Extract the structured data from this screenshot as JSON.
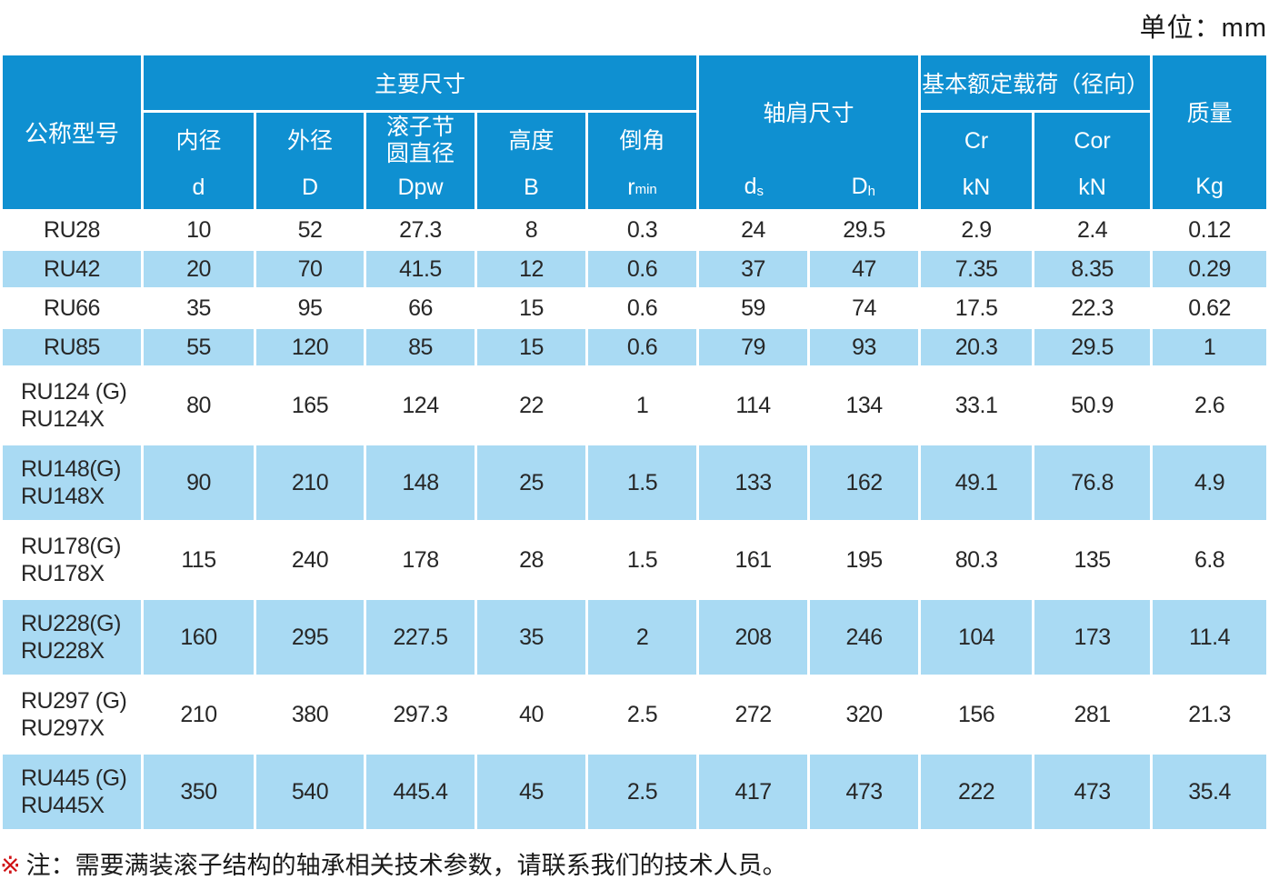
{
  "unit_label": "单位：mm",
  "colors": {
    "header_blue": "#0f90d1",
    "row_stripe_blue": "#a9daf3",
    "note_marker_red": "#d01215"
  },
  "table": {
    "header": {
      "model": "公称型号",
      "main_dims": "主要尺寸",
      "inner": {
        "name": "内径",
        "symbol": "d"
      },
      "outer": {
        "name": "外径",
        "symbol": "D"
      },
      "pitch": {
        "name": "滚子节\n圆直径",
        "symbol": "Dpw"
      },
      "height": {
        "name": "高度",
        "symbol": "B"
      },
      "chamfer": {
        "name": "倒角",
        "symbol_base": "r",
        "symbol_sub": "min"
      },
      "shoulder": {
        "name": "轴肩尺寸",
        "ds_base": "d",
        "ds_sub": "s",
        "dh_base": "D",
        "dh_sub": "h"
      },
      "load": {
        "name": "基本额定载荷（径向）",
        "cr": "Cr",
        "cor": "Cor",
        "cr_unit": "kN",
        "cor_unit": "kN"
      },
      "mass": {
        "name": "质量",
        "unit": "Kg"
      }
    },
    "rows": [
      {
        "model": [
          "RU28"
        ],
        "values": [
          "10",
          "52",
          "27.3",
          "8",
          "0.3",
          "24",
          "29.5",
          "2.9",
          "2.4",
          "0.12"
        ]
      },
      {
        "model": [
          "RU42"
        ],
        "values": [
          "20",
          "70",
          "41.5",
          "12",
          "0.6",
          "37",
          "47",
          "7.35",
          "8.35",
          "0.29"
        ]
      },
      {
        "model": [
          "RU66"
        ],
        "values": [
          "35",
          "95",
          "66",
          "15",
          "0.6",
          "59",
          "74",
          "17.5",
          "22.3",
          "0.62"
        ]
      },
      {
        "model": [
          "RU85"
        ],
        "values": [
          "55",
          "120",
          "85",
          "15",
          "0.6",
          "79",
          "93",
          "20.3",
          "29.5",
          "1"
        ]
      },
      {
        "model": [
          "RU124 (G)",
          "RU124X"
        ],
        "values": [
          "80",
          "165",
          "124",
          "22",
          "1",
          "114",
          "134",
          "33.1",
          "50.9",
          "2.6"
        ]
      },
      {
        "model": [
          "RU148(G)",
          "RU148X"
        ],
        "values": [
          "90",
          "210",
          "148",
          "25",
          "1.5",
          "133",
          "162",
          "49.1",
          "76.8",
          "4.9"
        ]
      },
      {
        "model": [
          "RU178(G)",
          "RU178X"
        ],
        "values": [
          "115",
          "240",
          "178",
          "28",
          "1.5",
          "161",
          "195",
          "80.3",
          "135",
          "6.8"
        ]
      },
      {
        "model": [
          "RU228(G)",
          "RU228X"
        ],
        "values": [
          "160",
          "295",
          "227.5",
          "35",
          "2",
          "208",
          "246",
          "104",
          "173",
          "11.4"
        ]
      },
      {
        "model": [
          "RU297 (G)",
          "RU297X"
        ],
        "values": [
          "210",
          "380",
          "297.3",
          "40",
          "2.5",
          "272",
          "320",
          "156",
          "281",
          "21.3"
        ]
      },
      {
        "model": [
          "RU445 (G)",
          "RU445X"
        ],
        "values": [
          "350",
          "540",
          "445.4",
          "45",
          "2.5",
          "417",
          "473",
          "222",
          "473",
          "35.4"
        ]
      }
    ]
  },
  "note": {
    "marker": "※",
    "text": "注：需要满装滚子结构的轴承相关技术参数，请联系我们的技术人员。"
  }
}
